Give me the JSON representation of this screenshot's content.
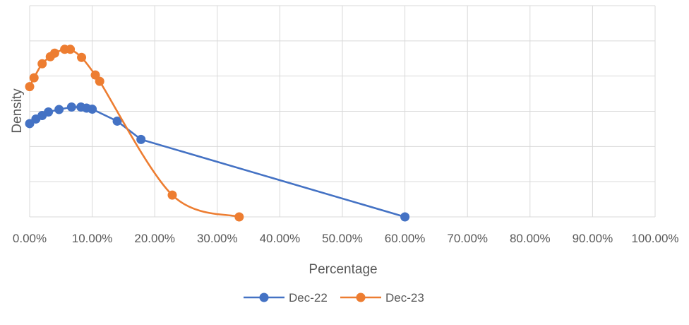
{
  "chart_data": {
    "type": "line",
    "title": "",
    "xlabel": "Percentage",
    "ylabel": "Density",
    "xlim": [
      0,
      1
    ],
    "ylim": [
      0,
      6
    ],
    "x_tick_values": [
      0,
      0.1,
      0.2,
      0.3,
      0.4,
      0.5,
      0.6,
      0.7,
      0.8,
      0.9,
      1.0
    ],
    "x_tick_labels": [
      "0.00%",
      "10.00%",
      "20.00%",
      "30.00%",
      "40.00%",
      "50.00%",
      "60.00%",
      "70.00%",
      "80.00%",
      "90.00%",
      "100.00%"
    ],
    "y_tick_labels_shown": false,
    "grid": true,
    "legend_position": "bottom",
    "series": [
      {
        "name": "Dec-22",
        "color": "#4472C4",
        "smooth": false,
        "points": [
          [
            0.0,
            2.65
          ],
          [
            0.01,
            2.78
          ],
          [
            0.02,
            2.88
          ],
          [
            0.03,
            2.98
          ],
          [
            0.047,
            3.05
          ],
          [
            0.067,
            3.12
          ],
          [
            0.082,
            3.12
          ],
          [
            0.091,
            3.09
          ],
          [
            0.1,
            3.06
          ],
          [
            0.14,
            2.72
          ],
          [
            0.178,
            2.2
          ],
          [
            0.6,
            0.0
          ]
        ]
      },
      {
        "name": "Dec-23",
        "color": "#ED7D31",
        "smooth": true,
        "points": [
          [
            0.0,
            3.7
          ],
          [
            0.007,
            3.95
          ],
          [
            0.02,
            4.35
          ],
          [
            0.033,
            4.55
          ],
          [
            0.04,
            4.65
          ],
          [
            0.056,
            4.76
          ],
          [
            0.065,
            4.76
          ],
          [
            0.083,
            4.53
          ],
          [
            0.105,
            4.03
          ],
          [
            0.112,
            3.85
          ],
          [
            0.228,
            0.62
          ],
          [
            0.335,
            0.0
          ]
        ]
      }
    ]
  }
}
